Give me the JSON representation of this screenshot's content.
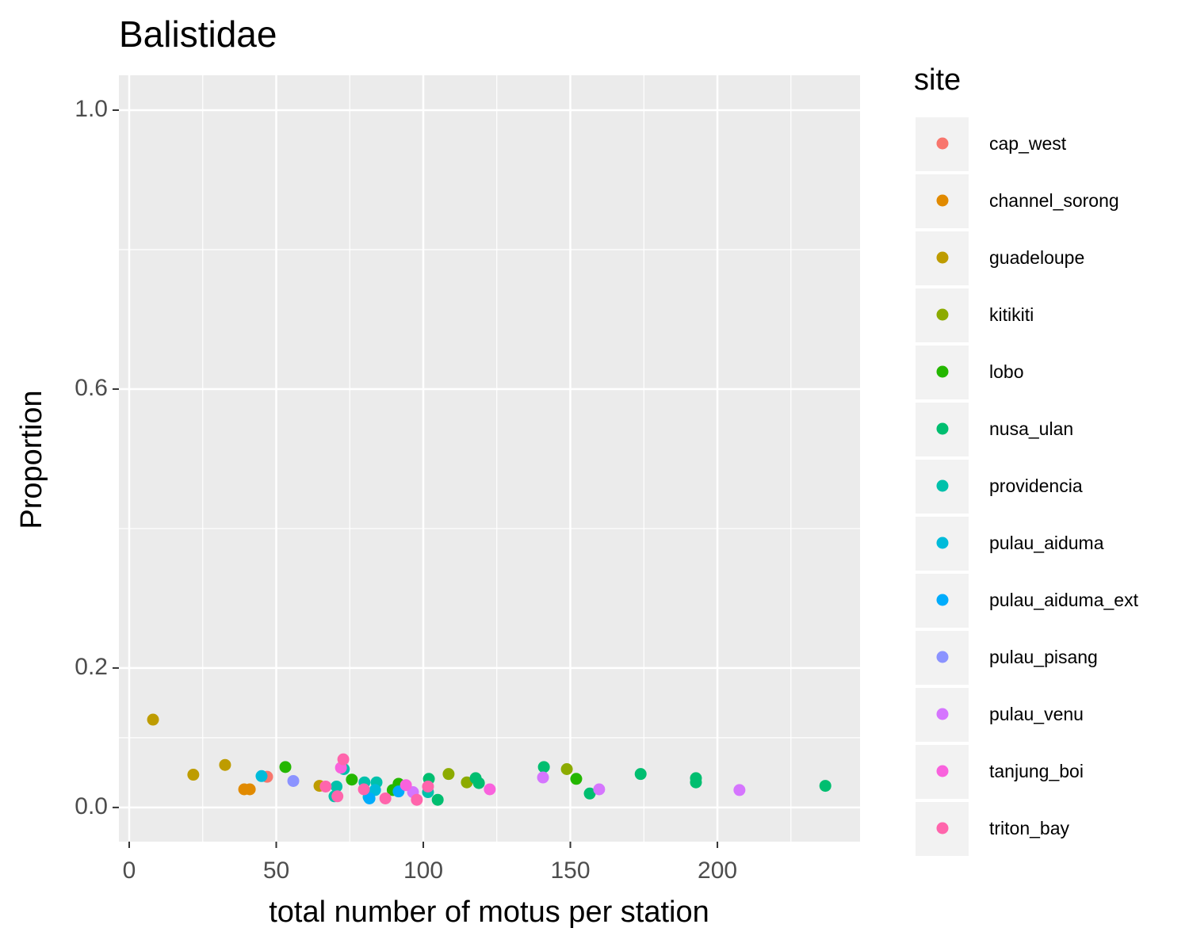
{
  "chart_data": {
    "type": "scatter",
    "title": "Balistidae",
    "x_label": "total number of motus per station",
    "y_label": "Proportion",
    "legend_title": "site",
    "legend_position": "right",
    "grid": true,
    "xlim": [
      -3.5,
      248.5
    ],
    "ylim": [
      -0.049,
      1.05
    ],
    "xticks": [
      0,
      50,
      100,
      150,
      200
    ],
    "xminor": [
      25,
      75,
      125,
      175,
      225
    ],
    "yticks": [
      {
        "value": 0,
        "label": "0.0"
      },
      0.2,
      0.6,
      {
        "value": 1,
        "label": "1.0"
      }
    ],
    "yminor": [
      0.1,
      0.4,
      0.8
    ],
    "series": [
      {
        "name": "cap_west",
        "color": "#F8766D",
        "x": [
          46.9
        ],
        "values": [
          0.044
        ]
      },
      {
        "name": "channel_sorong",
        "color": "#E18A00",
        "x": [
          39.1,
          41
        ],
        "values": [
          0.026,
          0.026
        ]
      },
      {
        "name": "guadeloupe",
        "color": "#BE9C00",
        "x": [
          8.1,
          21.8,
          32.6,
          64.7
        ],
        "values": [
          0.126,
          0.047,
          0.061,
          0.031
        ]
      },
      {
        "name": "kitikiti",
        "color": "#8CAB00",
        "x": [
          108.6,
          114.8,
          148.8
        ],
        "values": [
          0.048,
          0.036,
          0.055
        ]
      },
      {
        "name": "lobo",
        "color": "#24B700",
        "x": [
          53.1,
          75.7,
          91.6,
          152,
          89.6
        ],
        "values": [
          0.058,
          0.04,
          0.034,
          0.041,
          0.025
        ]
      },
      {
        "name": "nusa_ulan",
        "color": "#00BE70",
        "x": [
          101.9,
          104.9,
          117.8,
          118.9,
          141,
          156.6,
          173.9,
          192.7,
          192.7,
          236.7
        ],
        "values": [
          0.041,
          0.011,
          0.042,
          0.035,
          0.058,
          0.02,
          0.048,
          0.042,
          0.036,
          0.031
        ]
      },
      {
        "name": "providencia",
        "color": "#00C1AB",
        "x": [
          69.8,
          70.5,
          73,
          80,
          84.1,
          101.6
        ],
        "values": [
          0.016,
          0.03,
          0.055,
          0.036,
          0.036,
          0.022
        ]
      },
      {
        "name": "pulau_aiduma",
        "color": "#00BBDA",
        "x": [
          45,
          81.4,
          83.6
        ],
        "values": [
          0.045,
          0.015,
          0.025
        ]
      },
      {
        "name": "pulau_aiduma_ext",
        "color": "#00ACFC",
        "x": [
          91.6,
          81.7
        ],
        "values": [
          0.023,
          0.013
        ]
      },
      {
        "name": "pulau_pisang",
        "color": "#8B93FF",
        "x": [
          55.8
        ],
        "values": [
          0.038
        ]
      },
      {
        "name": "pulau_venu",
        "color": "#D575FE",
        "x": [
          140.7,
          159.8,
          207.5,
          96.5
        ],
        "values": [
          0.043,
          0.026,
          0.025,
          0.022
        ]
      },
      {
        "name": "tanjung_boi",
        "color": "#F962DD",
        "x": [
          122.6,
          72,
          94.1
        ],
        "values": [
          0.026,
          0.057,
          0.032
        ]
      },
      {
        "name": "triton_bay",
        "color": "#FF65AC",
        "x": [
          72.8,
          66.8,
          70.8,
          79.8,
          87.1,
          97.8,
          101.6
        ],
        "values": [
          0.069,
          0.03,
          0.016,
          0.026,
          0.013,
          0.011,
          0.03
        ]
      }
    ]
  }
}
